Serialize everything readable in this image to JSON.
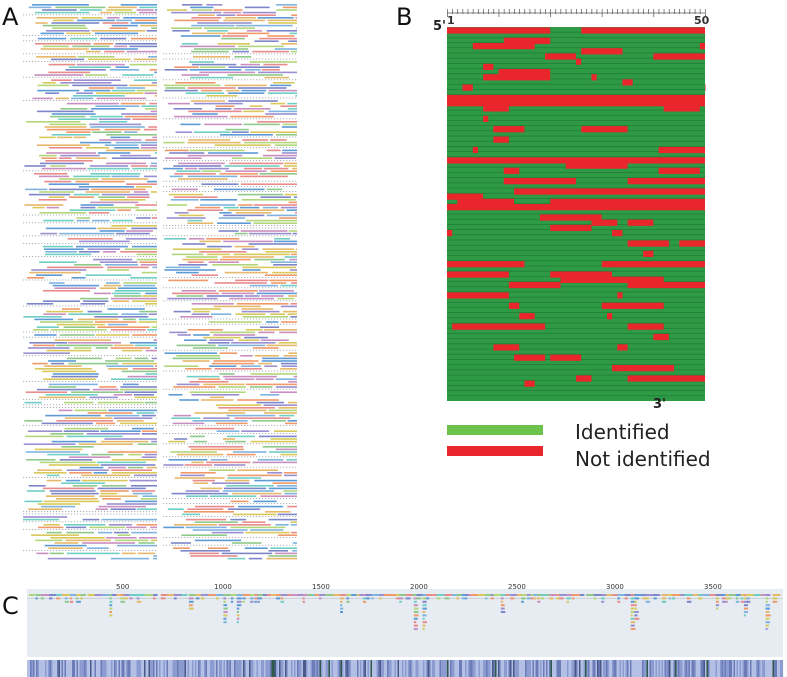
{
  "panels": {
    "a": {
      "letter": "A"
    },
    "b": {
      "letter": "B",
      "end_5": "5'",
      "end_3": "3'",
      "ruler_start": "1",
      "ruler_end": "50",
      "legend": [
        {
          "label": "Identified",
          "color": "#2e9a45",
          "swatch_color": "#6cc24a"
        },
        {
          "label": "Not identified",
          "color": "#e8262b",
          "swatch_color": "#e8262b"
        }
      ]
    },
    "c": {
      "letter": "C",
      "axis_ticks": [
        "500",
        "1000",
        "1500",
        "2000",
        "2500",
        "3000",
        "3500"
      ]
    }
  },
  "colors": {
    "identified": "#2e9a45",
    "not_identified": "#e8262b",
    "track_bg": "#e6ecf2",
    "density_base": "#8d9cd0"
  }
}
